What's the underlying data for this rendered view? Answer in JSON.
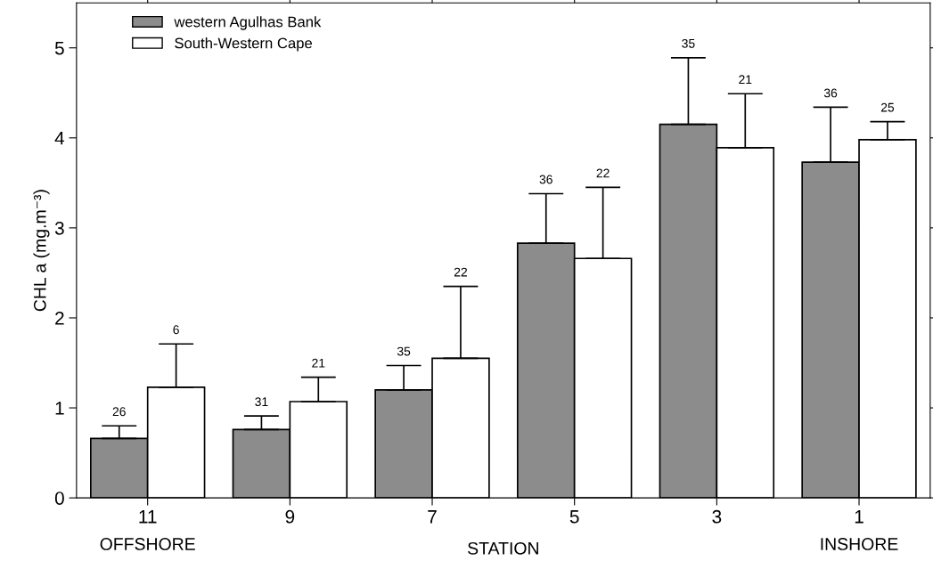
{
  "chart_data": {
    "type": "bar",
    "ylabel": "CHL a (mg.m⁻³)",
    "xlabel": "STATION",
    "categories": [
      "11",
      "9",
      "7",
      "5",
      "3",
      "1"
    ],
    "series": [
      {
        "name": "western Agulhas Bank",
        "color": "#8c8c8c",
        "values": [
          0.66,
          0.76,
          1.2,
          2.83,
          4.15,
          3.73
        ],
        "errors": [
          [
            0.66,
            0.8
          ],
          [
            0.76,
            0.91
          ],
          [
            1.2,
            1.47
          ],
          [
            2.83,
            3.38
          ],
          [
            4.15,
            4.89
          ],
          [
            3.73,
            4.34
          ]
        ]
      },
      {
        "name": "South-Western Cape",
        "color": "#ffffff",
        "values": [
          1.23,
          1.07,
          1.55,
          2.66,
          3.89,
          3.98
        ],
        "errors": [
          [
            1.23,
            1.71
          ],
          [
            1.07,
            1.34
          ],
          [
            1.55,
            2.35
          ],
          [
            2.66,
            3.45
          ],
          [
            3.89,
            4.49
          ],
          [
            3.98,
            4.18
          ]
        ]
      }
    ],
    "annotations": [
      "OFFSHORE",
      "INSHORE",
      "26",
      "31",
      "35",
      "36",
      "35",
      "36",
      "6",
      "21",
      "22",
      "22",
      "21",
      "25"
    ],
    "ylim": [
      0,
      5.5
    ],
    "yticks": [
      0,
      1,
      2,
      3,
      4,
      5
    ],
    "grid": false,
    "legend": "top left"
  }
}
